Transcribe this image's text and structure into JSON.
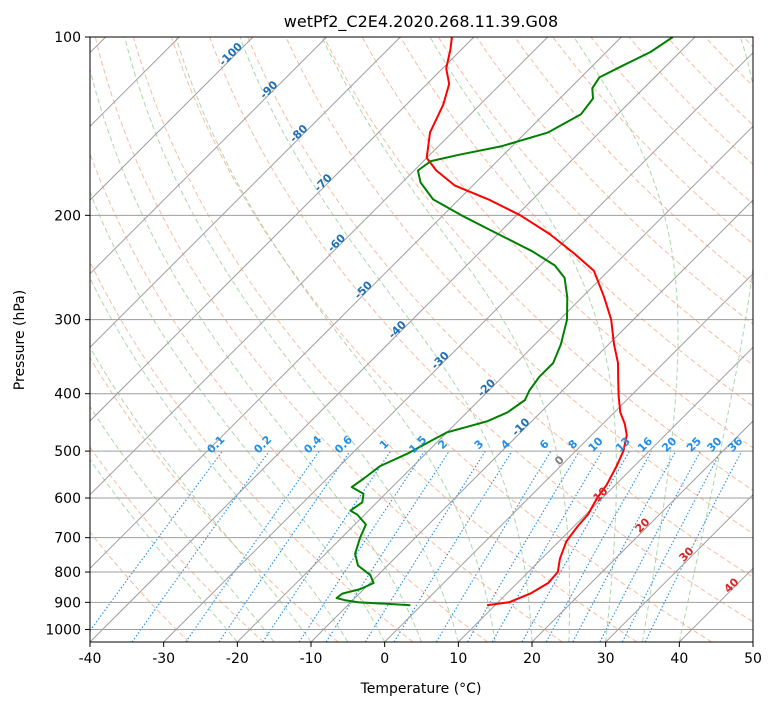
{
  "chart_data": {
    "type": "line",
    "subtype": "skew-T log-P diagram",
    "title": "wetPf2_C2E4.2020.268.11.39.G08",
    "xlabel": "Temperature (°C)",
    "ylabel": "Pressure (hPa)",
    "xlim": [
      -40,
      50
    ],
    "ylim": [
      1050,
      100
    ],
    "y_scale": "log",
    "x_ticks": [
      -40,
      -30,
      -20,
      -10,
      0,
      10,
      20,
      30,
      40,
      50
    ],
    "y_ticks": [
      100,
      200,
      300,
      400,
      500,
      600,
      700,
      800,
      900,
      1000
    ],
    "grid": true,
    "skewed_isotherm_step": 10,
    "colors": {
      "temperature": "#ff0000",
      "dewpoint": "#008000",
      "isotherm": "#9e9e9e",
      "isobar": "#9e9e9e",
      "dry_adiabat": "#f4a582",
      "moist_adiabat": "#99cc99",
      "mixing_ratio": "#1f8fe8",
      "isotherm_label": "#1f6fb5",
      "theta_e_label": "#d62728",
      "zero_label": "#808080"
    },
    "series": [
      {
        "color": "red",
        "points": [
          [
            8.9,
            910
          ],
          [
            11.5,
            900
          ],
          [
            13.2,
            870
          ],
          [
            14.2,
            835
          ],
          [
            14.0,
            800
          ],
          [
            12.5,
            760
          ],
          [
            11.0,
            710
          ],
          [
            10.5,
            670
          ],
          [
            10.3,
            640
          ],
          [
            9.3,
            600
          ],
          [
            8.8,
            570
          ],
          [
            7.6,
            530
          ],
          [
            6.5,
            500
          ],
          [
            4.8,
            470
          ],
          [
            3.0,
            450
          ],
          [
            0.8,
            430
          ],
          [
            -1.5,
            405
          ],
          [
            -3.8,
            380
          ],
          [
            -6.2,
            355
          ],
          [
            -9.3,
            330
          ],
          [
            -13.0,
            300
          ],
          [
            -17.0,
            275
          ],
          [
            -22.0,
            248
          ],
          [
            -27.0,
            232
          ],
          [
            -33.0,
            215
          ],
          [
            -39.5,
            200
          ],
          [
            -46.0,
            188
          ],
          [
            -52.5,
            178
          ],
          [
            -57.0,
            168
          ],
          [
            -60.0,
            160
          ],
          [
            -63.0,
            145
          ],
          [
            -65.0,
            130
          ],
          [
            -67.0,
            120
          ],
          [
            -69.5,
            113
          ],
          [
            -71.5,
            105
          ],
          [
            -73.0,
            100
          ]
        ]
      },
      {
        "color": "green",
        "points": [
          [
            -1.5,
            910
          ],
          [
            -5.0,
            905
          ],
          [
            -9.0,
            900
          ],
          [
            -11.0,
            893
          ],
          [
            -12.5,
            885
          ],
          [
            -12.3,
            870
          ],
          [
            -10.5,
            855
          ],
          [
            -9.5,
            835
          ],
          [
            -11.0,
            810
          ],
          [
            -14.0,
            780
          ],
          [
            -16.0,
            745
          ],
          [
            -17.5,
            700
          ],
          [
            -18.5,
            665
          ],
          [
            -21.0,
            640
          ],
          [
            -22.5,
            630
          ],
          [
            -22.0,
            610
          ],
          [
            -23.0,
            590
          ],
          [
            -25.5,
            575
          ],
          [
            -25.0,
            555
          ],
          [
            -24.5,
            530
          ],
          [
            -22.5,
            505
          ],
          [
            -21.0,
            480
          ],
          [
            -20.0,
            465
          ],
          [
            -18.0,
            455
          ],
          [
            -16.0,
            445
          ],
          [
            -14.5,
            430
          ],
          [
            -13.8,
            410
          ],
          [
            -14.5,
            395
          ],
          [
            -15.0,
            375
          ],
          [
            -15.0,
            355
          ],
          [
            -16.5,
            330
          ],
          [
            -19.0,
            300
          ],
          [
            -22.0,
            275
          ],
          [
            -25.0,
            255
          ],
          [
            -28.0,
            243
          ],
          [
            -33.0,
            230
          ],
          [
            -40.0,
            215
          ],
          [
            -47.5,
            200
          ],
          [
            -53.5,
            188
          ],
          [
            -57.5,
            176
          ],
          [
            -59.5,
            168
          ],
          [
            -59.0,
            162
          ],
          [
            -56.0,
            158
          ],
          [
            -51.5,
            153
          ],
          [
            -47.0,
            145
          ],
          [
            -45.0,
            135
          ],
          [
            -45.5,
            127
          ],
          [
            -47.0,
            122
          ],
          [
            -47.5,
            117
          ],
          [
            -46.0,
            112
          ],
          [
            -44.0,
            106
          ],
          [
            -43.0,
            100
          ]
        ]
      }
    ],
    "isotherm_labels": [
      "-100",
      "-90",
      "-80",
      "-70",
      "-60",
      "-50",
      "-40",
      "-30",
      "-20",
      "-10"
    ],
    "mixing_ratio_labels": [
      "0.1",
      "0.2",
      "0.4",
      "0.6",
      "1",
      "1.5",
      "2",
      "3",
      "4",
      "6",
      "8",
      "10",
      "13",
      "16",
      "20",
      "25",
      "30",
      "36"
    ],
    "theta_e_labels": [
      "0",
      "10",
      "20",
      "30",
      "40"
    ]
  }
}
